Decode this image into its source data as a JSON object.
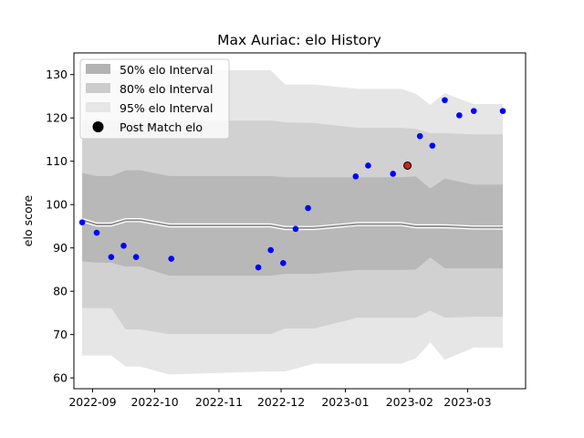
{
  "chart_data": {
    "type": "area",
    "title": "Max Auriac: elo History",
    "xlabel": "",
    "ylabel": "elo score",
    "xlim": [
      "2022-08-23",
      "2023-03-29"
    ],
    "ylim": [
      57.5,
      135
    ],
    "x_ticks": [
      "2022-09-01",
      "2022-10-01",
      "2022-11-01",
      "2022-12-01",
      "2023-01-01",
      "2023-02-01",
      "2023-03-01"
    ],
    "x_tick_labels": [
      "2022-09",
      "2022-10",
      "2022-11",
      "2022-12",
      "2023-01",
      "2023-02",
      "2023-03"
    ],
    "y_ticks": [
      60,
      70,
      80,
      90,
      100,
      110,
      120,
      130
    ],
    "y_tick_labels": [
      "60",
      "70",
      "80",
      "90",
      "100",
      "110",
      "120",
      "130"
    ],
    "grid": false,
    "legend_position": "top-left",
    "legend": [
      {
        "label": "50% elo Interval",
        "kind": "patch",
        "color": "#b3b3b3"
      },
      {
        "label": "80% elo Interval",
        "kind": "patch",
        "color": "#cccccc"
      },
      {
        "label": "95% elo Interval",
        "kind": "patch",
        "color": "#e6e6e6"
      },
      {
        "label": "Post Match elo",
        "kind": "marker",
        "color": "#000000"
      }
    ],
    "colors": {
      "band95": "#e6e6e6",
      "band80": "#d1d1d1",
      "band50": "#b8b8b8",
      "median_line": "#8c8c8c",
      "median_halo": "#ffffff",
      "points": "#0000ff",
      "highlight_point": "#cc2222",
      "highlight_edge": "#000000"
    },
    "bands": {
      "x": [
        "2022-08-27",
        "2022-09-03",
        "2022-09-10",
        "2022-09-17",
        "2022-09-24",
        "2022-10-08",
        "2022-11-26",
        "2022-12-03",
        "2022-12-17",
        "2023-01-07",
        "2023-01-28",
        "2023-02-04",
        "2023-02-11",
        "2023-02-18",
        "2023-03-04",
        "2023-03-18"
      ],
      "p95_upper": [
        131,
        131,
        131,
        131,
        131,
        131,
        131,
        127.7,
        127.7,
        126.7,
        126.7,
        125.6,
        123,
        125.7,
        123.2,
        123.2
      ],
      "p80_upper": [
        119.4,
        119.4,
        119.4,
        119.4,
        119.4,
        119.4,
        119.4,
        119,
        118.8,
        117.7,
        117.7,
        117.5,
        116.5,
        116.5,
        116.2,
        116.2
      ],
      "p50_upper": [
        107.3,
        106.6,
        106.6,
        107.9,
        107.9,
        106.6,
        106.6,
        106.3,
        106.3,
        106.3,
        106.3,
        106.5,
        103.7,
        106,
        104.6,
        104.6
      ],
      "median": [
        96.4,
        95.4,
        95.4,
        96.4,
        96.4,
        95.2,
        95.2,
        94.6,
        94.6,
        95.5,
        95.5,
        95,
        95,
        95,
        94.7,
        94.7
      ],
      "p50_lower": [
        86.9,
        86.6,
        86.6,
        85.7,
        85.7,
        83.6,
        83.6,
        84,
        84,
        84.9,
        84.9,
        85,
        87.8,
        85.3,
        85.3,
        85.3
      ],
      "p80_lower": [
        76.1,
        76.1,
        76.1,
        71.2,
        71.2,
        70.1,
        70.1,
        71.4,
        71.4,
        73.9,
        73.9,
        73.9,
        75.5,
        73.9,
        74.1,
        74.1
      ],
      "p95_lower": [
        65.2,
        65.2,
        65.2,
        62.6,
        62.6,
        60.8,
        61.5,
        61.5,
        63.3,
        63.3,
        63.3,
        64.5,
        68.2,
        64.2,
        67,
        67
      ]
    },
    "series": [
      {
        "name": "Post Match elo",
        "type": "scatter",
        "x": [
          "2022-08-27",
          "2022-09-03",
          "2022-09-10",
          "2022-09-16",
          "2022-09-22",
          "2022-10-09",
          "2022-11-20",
          "2022-11-26",
          "2022-12-02",
          "2022-12-08",
          "2022-12-14",
          "2023-01-06",
          "2023-01-12",
          "2023-01-24",
          "2023-01-31",
          "2023-02-06",
          "2023-02-12",
          "2023-02-18",
          "2023-02-25",
          "2023-03-04",
          "2023-03-18"
        ],
        "y": [
          95.9,
          93.5,
          87.9,
          90.5,
          87.9,
          87.5,
          85.5,
          89.5,
          86.5,
          94.4,
          99.2,
          106.5,
          109,
          107.1,
          109,
          115.8,
          113.6,
          124.1,
          120.6,
          121.6,
          121.6
        ]
      }
    ],
    "highlight": {
      "name": "Post Match elo",
      "x": "2023-01-31",
      "y": 109
    }
  }
}
